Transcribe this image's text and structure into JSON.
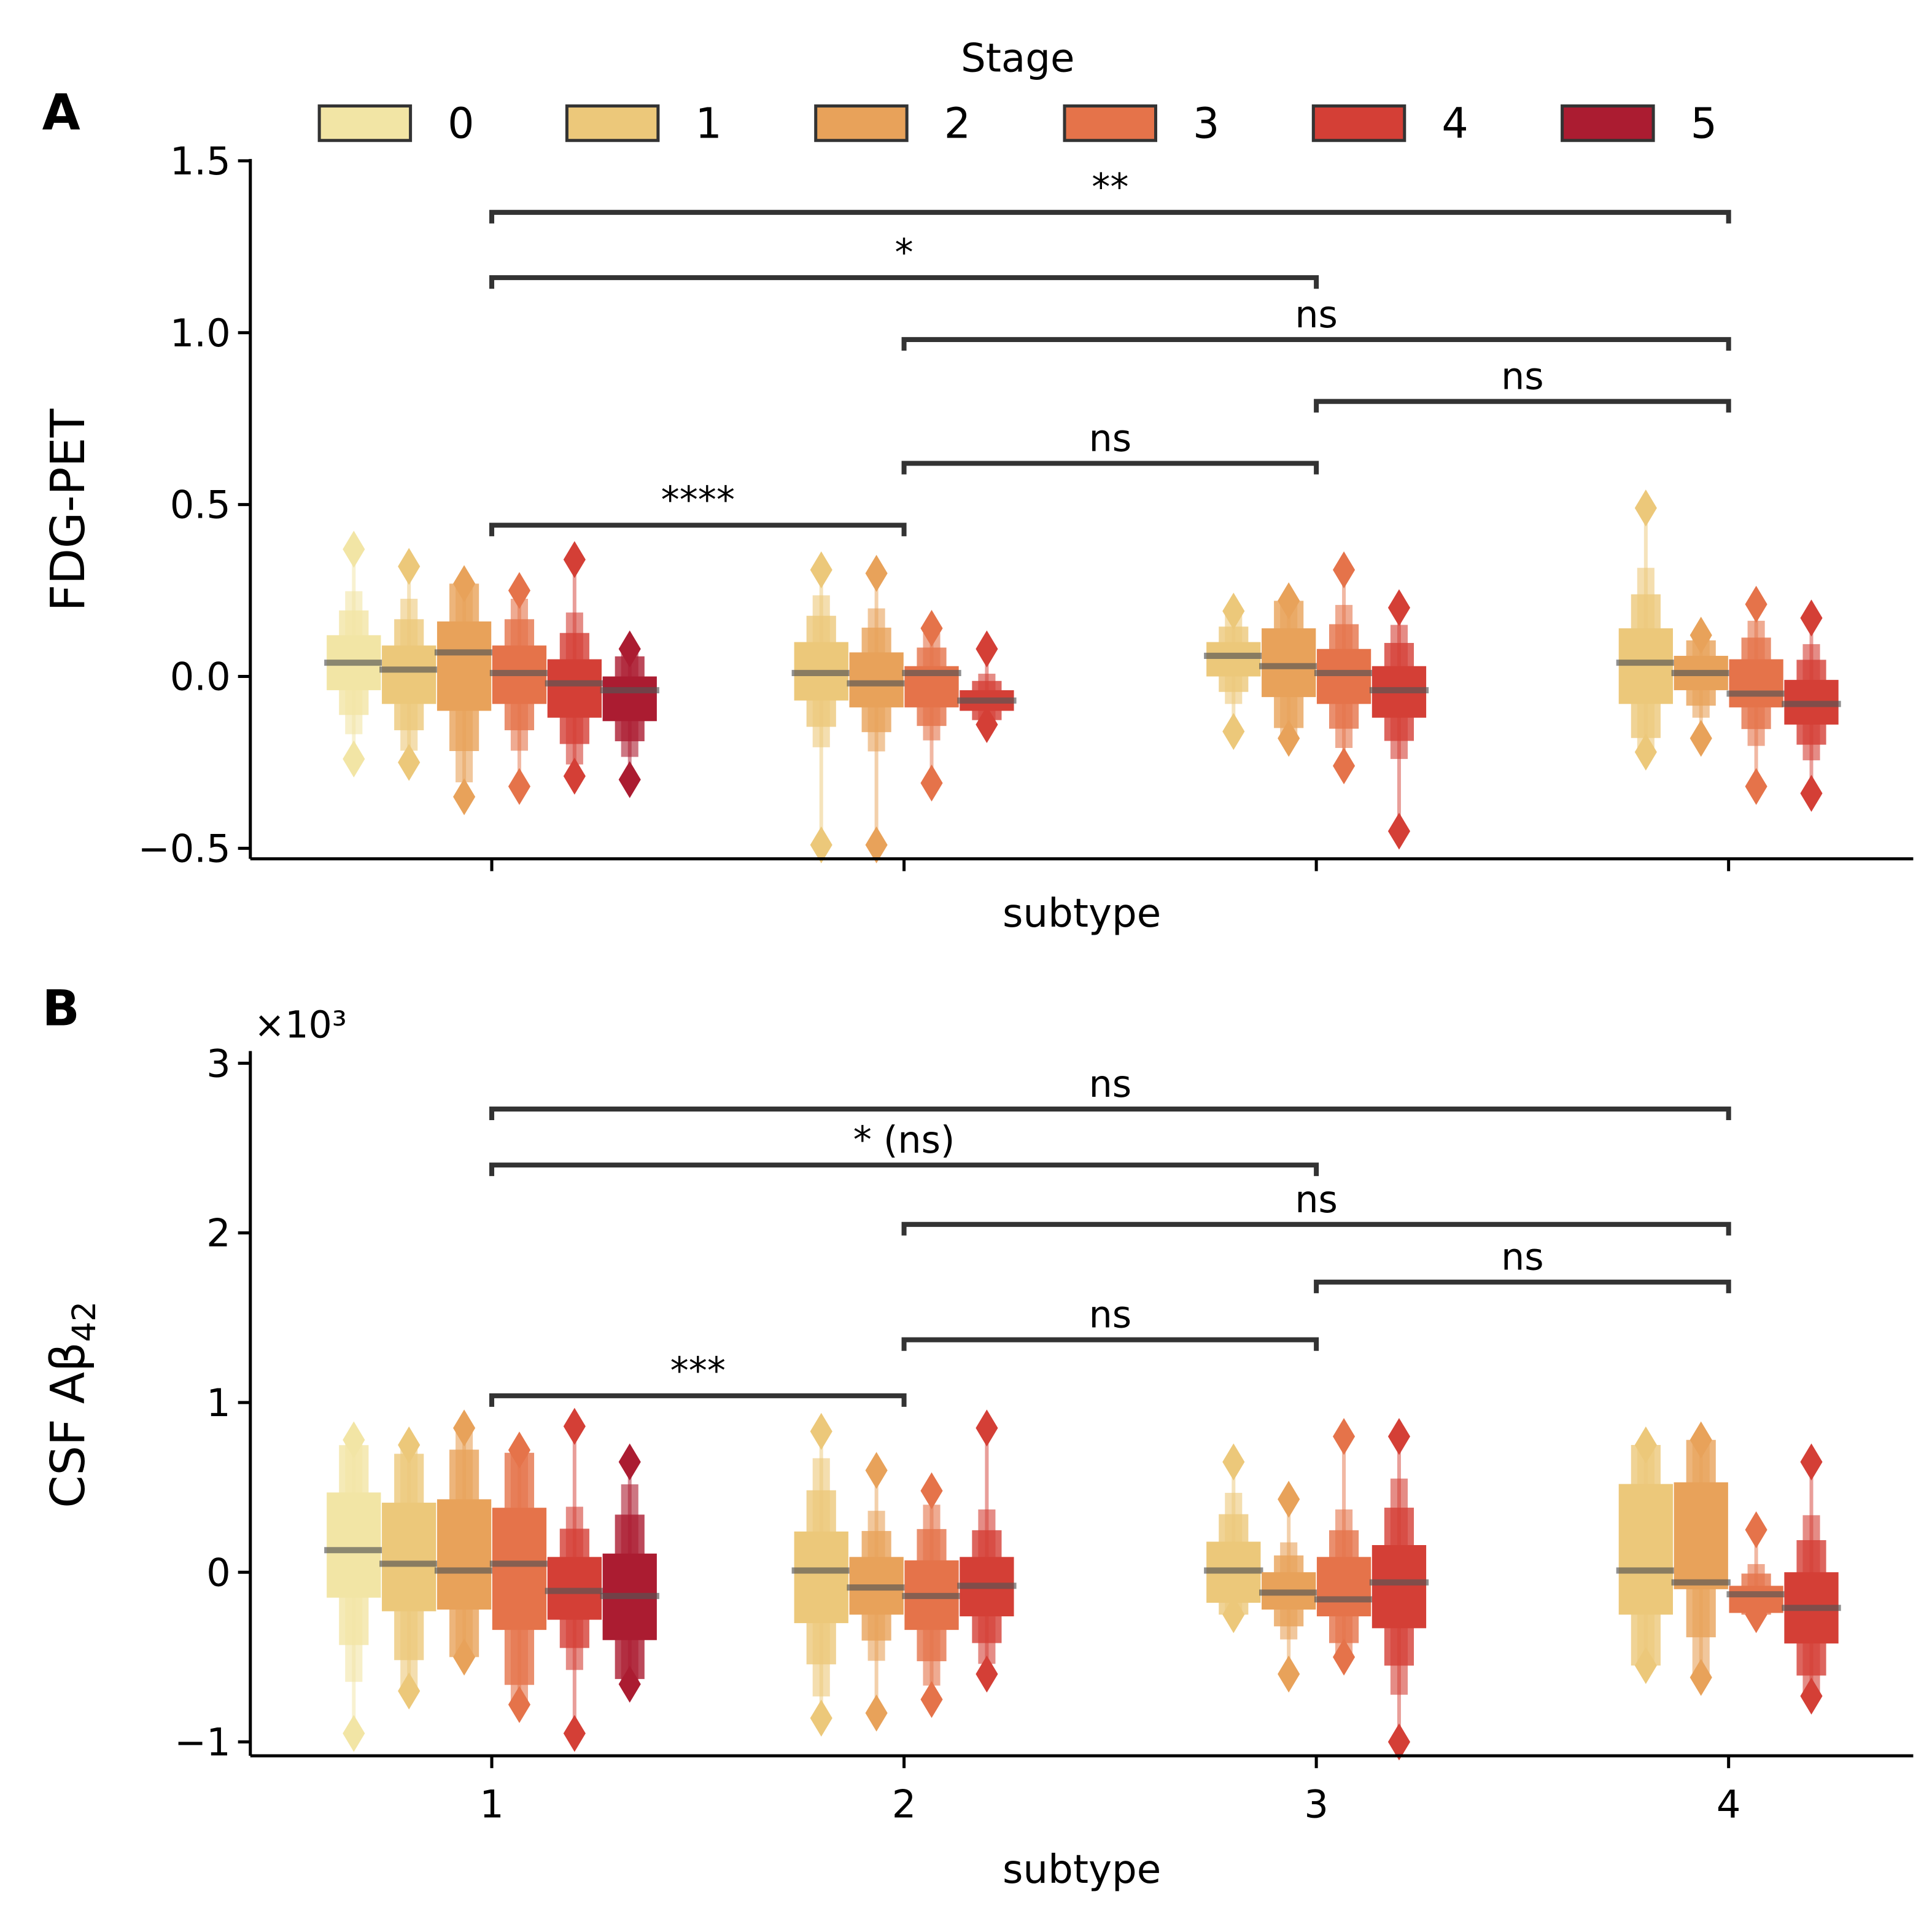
{
  "legend": {
    "title": "Stage",
    "labels": [
      "0",
      "1",
      "2",
      "3",
      "4",
      "5"
    ]
  },
  "colors": {
    "stages": [
      "#f2e5a5",
      "#ecc87a",
      "#e8a25a",
      "#e5734a",
      "#d43f36",
      "#ab1c31"
    ],
    "axis": "#000000",
    "bracket": "#333333",
    "median": "#555555"
  },
  "chart_data": [
    {
      "type": "boxen",
      "panel_label": "A",
      "ylabel": "FDG-PET",
      "xlabel": "subtype",
      "ylim": [
        -0.5,
        1.5
      ],
      "yticks": [
        -0.5,
        0.0,
        0.5,
        1.0,
        1.5
      ],
      "ytick_labels": [
        "−0.5",
        "0.0",
        "0.5",
        "1.0",
        "1.5"
      ],
      "xticks": [
        1,
        2,
        3,
        4
      ],
      "xtick_labels_shown": false,
      "groups": [
        {
          "subtype": 1,
          "boxes": [
            [
              0,
              0.04,
              -0.04,
              0.12,
              -0.24,
              0.37
            ],
            [
              1,
              0.02,
              -0.08,
              0.09,
              -0.25,
              0.32
            ],
            [
              2,
              0.07,
              -0.1,
              0.16,
              -0.35,
              0.27
            ],
            [
              3,
              0.01,
              -0.08,
              0.09,
              -0.32,
              0.25
            ],
            [
              4,
              -0.02,
              -0.12,
              0.05,
              -0.29,
              0.34
            ],
            [
              5,
              -0.04,
              -0.13,
              0.0,
              -0.3,
              0.08
            ]
          ]
        },
        {
          "subtype": 2,
          "boxes": [
            [
              1,
              0.01,
              -0.07,
              0.1,
              -0.49,
              0.31
            ],
            [
              2,
              -0.02,
              -0.09,
              0.07,
              -0.49,
              0.3
            ],
            [
              3,
              0.01,
              -0.09,
              0.03,
              -0.31,
              0.14
            ],
            [
              4,
              -0.07,
              -0.1,
              -0.04,
              -0.14,
              0.08
            ]
          ]
        },
        {
          "subtype": 3,
          "boxes": [
            [
              1,
              0.06,
              0.0,
              0.1,
              -0.16,
              0.19
            ],
            [
              2,
              0.03,
              -0.06,
              0.14,
              -0.18,
              0.22
            ],
            [
              3,
              0.01,
              -0.08,
              0.08,
              -0.26,
              0.31
            ],
            [
              4,
              -0.04,
              -0.12,
              0.03,
              -0.45,
              0.2
            ]
          ]
        },
        {
          "subtype": 4,
          "boxes": [
            [
              1,
              0.04,
              -0.08,
              0.14,
              -0.22,
              0.49
            ],
            [
              2,
              0.01,
              -0.04,
              0.06,
              -0.18,
              0.12
            ],
            [
              3,
              -0.05,
              -0.09,
              0.05,
              -0.32,
              0.21
            ],
            [
              4,
              -0.08,
              -0.14,
              -0.01,
              -0.34,
              0.17
            ]
          ]
        }
      ],
      "brackets": [
        {
          "from": 1,
          "to": 4,
          "y": 1.35,
          "label": "**"
        },
        {
          "from": 1,
          "to": 3,
          "y": 1.16,
          "label": "*"
        },
        {
          "from": 2,
          "to": 4,
          "y": 0.98,
          "label": "ns"
        },
        {
          "from": 3,
          "to": 4,
          "y": 0.8,
          "label": "ns"
        },
        {
          "from": 2,
          "to": 3,
          "y": 0.62,
          "label": "ns"
        },
        {
          "from": 1,
          "to": 2,
          "y": 0.44,
          "label": "****"
        }
      ]
    },
    {
      "type": "boxen",
      "panel_label": "B",
      "ylabel": "CSF Aβ",
      "ylabel_sub": "42",
      "offset_text": "×10³",
      "xlabel": "subtype",
      "ylim": [
        -1,
        3
      ],
      "yticks": [
        -1,
        0,
        1,
        2,
        3
      ],
      "ytick_labels": [
        "−1",
        "0",
        "1",
        "2",
        "3"
      ],
      "xticks": [
        1,
        2,
        3,
        4
      ],
      "xtick_labels": [
        "1",
        "2",
        "3",
        "4"
      ],
      "xtick_labels_shown": true,
      "groups": [
        {
          "subtype": 1,
          "boxes": [
            [
              0,
              0.13,
              -0.15,
              0.47,
              -0.95,
              0.78
            ],
            [
              1,
              0.05,
              -0.23,
              0.41,
              -0.7,
              0.75
            ],
            [
              2,
              0.01,
              -0.22,
              0.43,
              -0.5,
              0.85
            ],
            [
              3,
              0.05,
              -0.34,
              0.38,
              -0.78,
              0.72
            ],
            [
              4,
              -0.11,
              -0.28,
              0.09,
              -0.95,
              0.86
            ],
            [
              5,
              -0.14,
              -0.4,
              0.11,
              -0.66,
              0.65
            ]
          ]
        },
        {
          "subtype": 2,
          "boxes": [
            [
              1,
              0.01,
              -0.3,
              0.24,
              -0.86,
              0.83
            ],
            [
              2,
              -0.09,
              -0.25,
              0.09,
              -0.83,
              0.6
            ],
            [
              3,
              -0.14,
              -0.34,
              0.07,
              -0.75,
              0.48
            ],
            [
              4,
              -0.08,
              -0.26,
              0.09,
              -0.6,
              0.85
            ]
          ]
        },
        {
          "subtype": 3,
          "boxes": [
            [
              1,
              0.01,
              -0.18,
              0.18,
              -0.25,
              0.65
            ],
            [
              2,
              -0.12,
              -0.22,
              0.0,
              -0.6,
              0.43
            ],
            [
              3,
              -0.16,
              -0.26,
              0.09,
              -0.5,
              0.8
            ],
            [
              4,
              -0.06,
              -0.33,
              0.16,
              -1.0,
              0.8
            ]
          ]
        },
        {
          "subtype": 4,
          "boxes": [
            [
              1,
              0.01,
              -0.25,
              0.52,
              -0.55,
              0.75
            ],
            [
              2,
              -0.06,
              -0.1,
              0.53,
              -0.62,
              0.78
            ],
            [
              3,
              -0.13,
              -0.24,
              -0.08,
              -0.25,
              0.25
            ],
            [
              4,
              -0.21,
              -0.42,
              0.0,
              -0.73,
              0.65
            ]
          ]
        }
      ],
      "brackets": [
        {
          "from": 1,
          "to": 4,
          "y": 2.73,
          "label": "ns"
        },
        {
          "from": 1,
          "to": 3,
          "y": 2.4,
          "label": "* (ns)"
        },
        {
          "from": 2,
          "to": 4,
          "y": 2.05,
          "label": "ns"
        },
        {
          "from": 3,
          "to": 4,
          "y": 1.71,
          "label": "ns"
        },
        {
          "from": 2,
          "to": 3,
          "y": 1.37,
          "label": "ns"
        },
        {
          "from": 1,
          "to": 2,
          "y": 1.04,
          "label": "***"
        }
      ]
    }
  ]
}
